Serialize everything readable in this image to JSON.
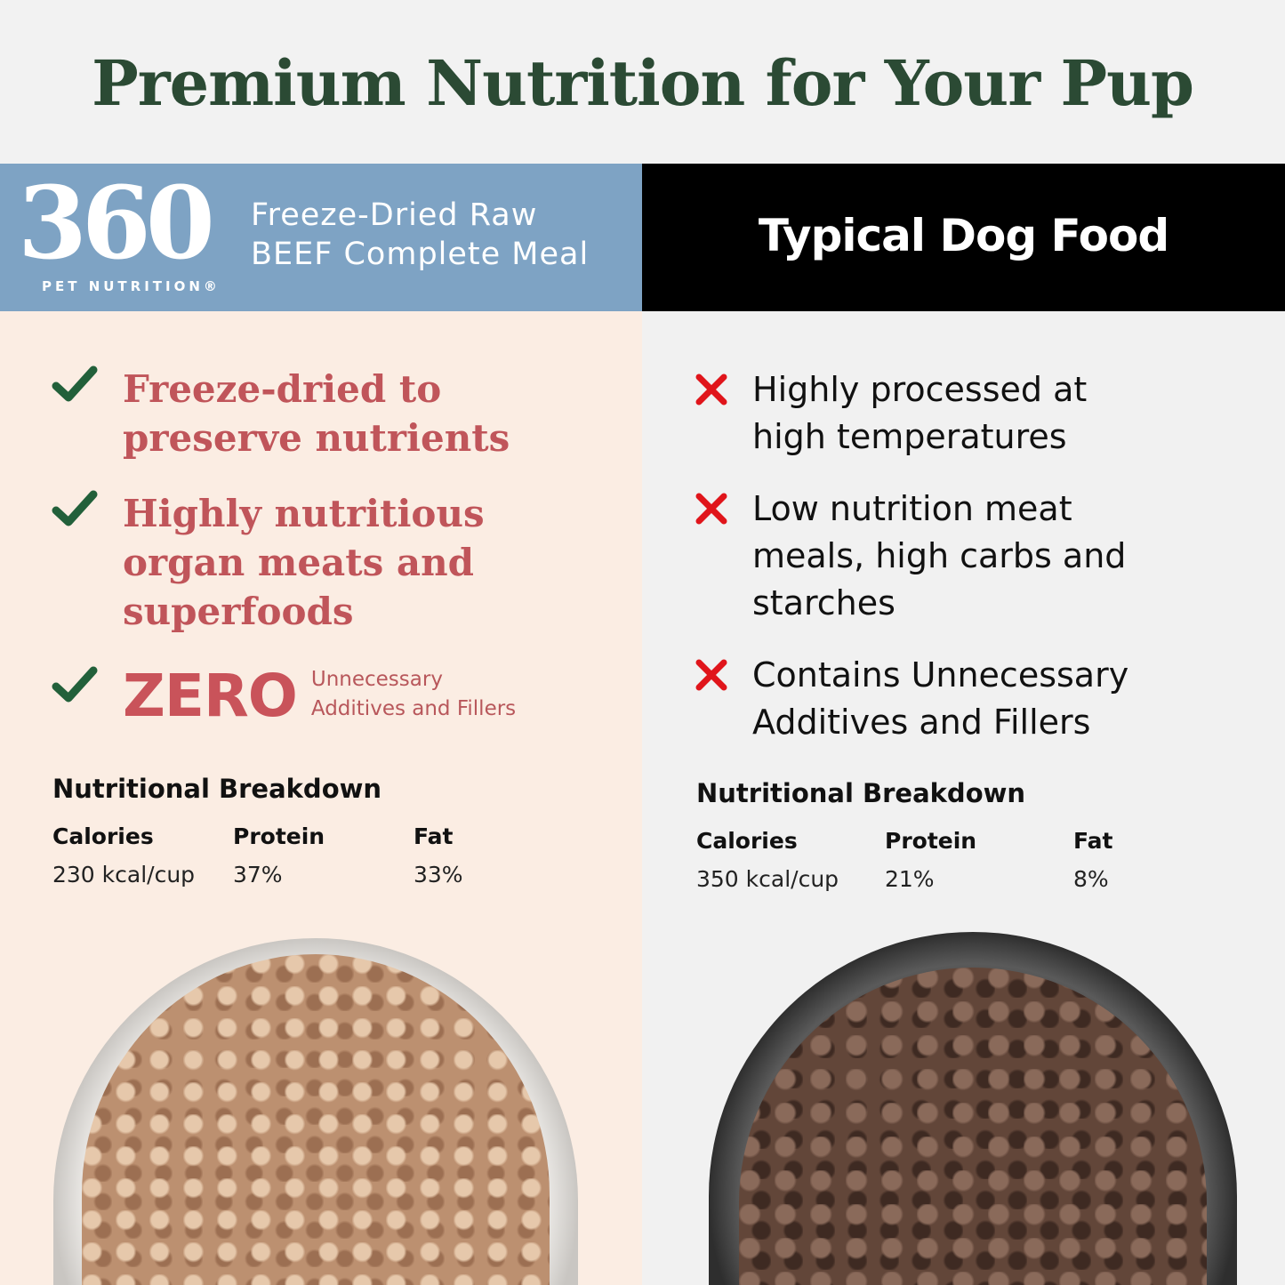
{
  "title": "Premium Nutrition for Your Pup",
  "left": {
    "brand": {
      "number": "360",
      "sub": "PET NUTRITION®"
    },
    "product_line1": "Freeze-Dried Raw",
    "product_line2": "BEEF Complete Meal",
    "benefits": [
      {
        "icon": "check-icon",
        "line1": "Freeze-dried to",
        "line2": "preserve nutrients"
      },
      {
        "icon": "check-icon",
        "line1": "Highly nutritious",
        "line2": "organ meats and",
        "line3": "superfoods"
      },
      {
        "icon": "check-icon",
        "big": "ZERO",
        "line1": "Unnecessary",
        "line2": "Additives and Fillers"
      }
    ],
    "nutrition": {
      "title": "Nutritional Breakdown",
      "headers": [
        "Calories",
        "Protein",
        "Fat"
      ],
      "values": [
        "230 kcal/cup",
        "37%",
        "33%"
      ]
    }
  },
  "right": {
    "heading": "Typical Dog Food",
    "drawbacks": [
      {
        "icon": "x-icon",
        "line1": "Highly processed at",
        "line2": "high temperatures"
      },
      {
        "icon": "x-icon",
        "line1": "Low nutrition meat",
        "line2": "meals, high carbs and",
        "line3": "starches"
      },
      {
        "icon": "x-icon",
        "line1": "Contains Unnecessary",
        "line2": "Additives and Fillers"
      }
    ],
    "nutrition": {
      "title": "Nutritional Breakdown",
      "headers": [
        "Calories",
        "Protein",
        "Fat"
      ],
      "values": [
        "350 kcal/cup",
        "21%",
        "8%"
      ]
    }
  },
  "colors": {
    "title": "#2b4a34",
    "brand_blue": "#7ea3c4",
    "benefit_red": "#c0555a",
    "check_green": "#22603a",
    "cross_red": "#e0151b"
  }
}
